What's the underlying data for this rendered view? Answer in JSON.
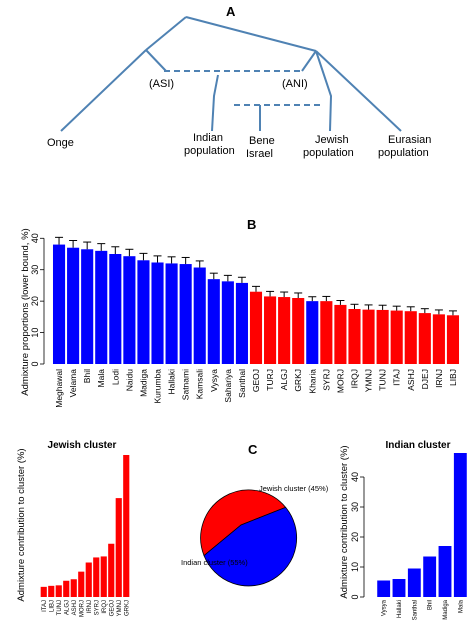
{
  "panel_a": {
    "letter": "A",
    "labels": {
      "onge": "Onge",
      "asi": "(ASI)",
      "ani": "(ANI)",
      "indian_l1": "Indian",
      "indian_l2": "population",
      "bene_l1": "Bene",
      "bene_l2": "Israel",
      "jewish_l1": "Jewish",
      "jewish_l2": "population",
      "eurasian_l1": "Eurasian",
      "eurasian_l2": "population"
    },
    "colors": {
      "tree": "#4f82b3"
    }
  },
  "chart_data": [
    {
      "type": "bar",
      "panel": "B",
      "title": "",
      "xlabel": "",
      "ylabel": "Admixture proportions (lower bound, %)",
      "ylim": [
        0,
        42
      ],
      "yticks": [
        0,
        10,
        20,
        30,
        40
      ],
      "error_bars": true,
      "categories": [
        "Meghawal",
        "Velama",
        "Bhil",
        "Mala",
        "Lodi",
        "Naidu",
        "Madiga",
        "Kurumba",
        "Hallaki",
        "Satnami",
        "Kamsali",
        "Vysya",
        "Sahariya",
        "Santhal",
        "GEOJ",
        "TURJ",
        "ALGJ",
        "GRKJ",
        "Kharia",
        "SYRJ",
        "MORJ",
        "IRQJ",
        "YMNJ",
        "TUNJ",
        "ITAJ",
        "ASHJ",
        "DJEJ",
        "IRNJ",
        "LIBJ"
      ],
      "values": [
        38,
        37,
        36.5,
        36,
        35,
        34.3,
        33,
        32.3,
        32,
        31.8,
        30.7,
        27,
        26.3,
        25.8,
        23,
        21.5,
        21.3,
        21,
        20,
        20,
        18.8,
        17.5,
        17.3,
        17.2,
        17,
        16.8,
        16.2,
        15.8,
        15.5
      ],
      "errors": [
        2.3,
        2.3,
        2.3,
        2.3,
        2.3,
        2.2,
        2.2,
        2.1,
        2.1,
        2.1,
        2.1,
        1.9,
        1.9,
        1.8,
        1.7,
        1.6,
        1.6,
        1.6,
        1.4,
        1.5,
        1.4,
        1.5,
        1.5,
        1.5,
        1.4,
        1.4,
        1.4,
        1.4,
        1.4
      ],
      "colors": [
        "blue",
        "blue",
        "blue",
        "blue",
        "blue",
        "blue",
        "blue",
        "blue",
        "blue",
        "blue",
        "blue",
        "blue",
        "blue",
        "blue",
        "red",
        "red",
        "red",
        "red",
        "blue",
        "red",
        "red",
        "red",
        "red",
        "red",
        "red",
        "red",
        "red",
        "red",
        "red"
      ]
    },
    {
      "type": "bar",
      "panel": "C-left",
      "title": "Jewish cluster",
      "xlabel": "",
      "ylabel": "Admixture contribution to cluster (%)",
      "ylim": [
        0,
        28
      ],
      "categories": [
        "ITAJ",
        "LIBJ",
        "TUNJ",
        "ALGJ",
        "ASHJ",
        "MORJ",
        "IRNJ",
        "SYRJ",
        "IRQJ",
        "GEOJ",
        "YMNJ",
        "GRKJ"
      ],
      "values": [
        2.0,
        2.2,
        2.3,
        3.2,
        3.5,
        5.0,
        6.8,
        7.8,
        8.0,
        10.5,
        19.5,
        28.0
      ]
    },
    {
      "type": "pie",
      "panel": "C",
      "labels": [
        "Jewish cluster (45%)",
        "Indian cluster (55%)"
      ],
      "values": [
        45,
        55
      ]
    },
    {
      "type": "bar",
      "panel": "C-right",
      "title": "Indian cluster",
      "xlabel": "",
      "ylabel": "Admixture contribution to cluster (%)",
      "ylim": [
        0,
        48
      ],
      "yticks": [
        0,
        10,
        20,
        30,
        40
      ],
      "categories": [
        "Vysya",
        "Hallaki",
        "Santhal",
        "Bhil",
        "Madiga",
        "Mala"
      ],
      "values": [
        5.5,
        6.0,
        9.5,
        13.5,
        17.0,
        48.0
      ]
    }
  ],
  "colors": {
    "blue": "#0000ff",
    "red": "#ff0000",
    "pie_red": "#ff0000",
    "pie_blue": "#0000ff"
  }
}
